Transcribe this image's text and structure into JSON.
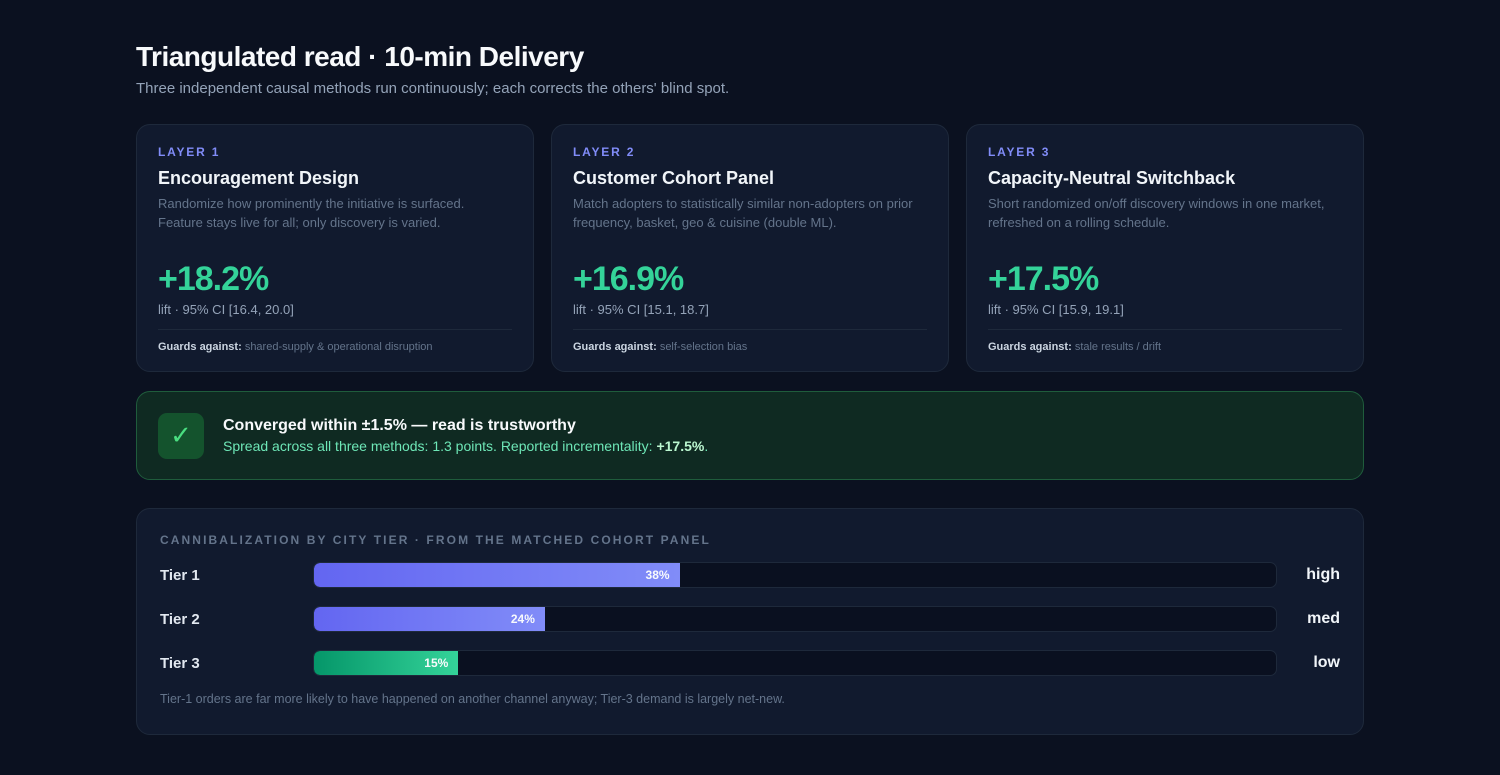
{
  "header": {
    "title": "Triangulated read · 10-min Delivery",
    "subtitle": "Three independent causal methods run continuously; each corrects the others' blind spot."
  },
  "cards": [
    {
      "layer": "LAYER 1",
      "title": "Encouragement Design",
      "description": "Randomize how prominently the initiative is surfaced. Feature stays live for all; only discovery is varied.",
      "lift": "+18.2%",
      "ci": "lift · 95% CI [16.4, 20.0]",
      "guards_label": "Guards against:",
      "guards_value": "shared-supply & operational disruption"
    },
    {
      "layer": "LAYER 2",
      "title": "Customer Cohort Panel",
      "description": "Match adopters to statistically similar non-adopters on prior frequency, basket, geo & cuisine (double ML).",
      "lift": "+16.9%",
      "ci": "lift · 95% CI [15.1, 18.7]",
      "guards_label": "Guards against:",
      "guards_value": "self-selection bias"
    },
    {
      "layer": "LAYER 3",
      "title": "Capacity-Neutral Switchback",
      "description": "Short randomized on/off discovery windows in one market, refreshed on a rolling schedule.",
      "lift": "+17.5%",
      "ci": "lift · 95% CI [15.9, 19.1]",
      "guards_label": "Guards against:",
      "guards_value": "stale results / drift"
    }
  ],
  "banner": {
    "check_icon": "✓",
    "title": "Converged within ±1.5% — read is trustworthy",
    "sub_prefix": "Spread across all three methods: 1.3 points. Reported incrementality: ",
    "sub_value": "+17.5%",
    "sub_suffix": "."
  },
  "panel": {
    "title": "CANNIBALIZATION BY CITY TIER · FROM THE MATCHED COHORT PANEL",
    "footnote": "Tier-1 orders are far more likely to have happened on another channel anyway; Tier-3 demand is largely net-new."
  },
  "chart_data": {
    "type": "bar",
    "orientation": "horizontal",
    "categories": [
      "Tier 1",
      "Tier 2",
      "Tier 3"
    ],
    "values": [
      38,
      24,
      15
    ],
    "value_labels": [
      "38%",
      "24%",
      "15%"
    ],
    "levels": [
      "high",
      "med",
      "low"
    ],
    "colors": [
      "#6366f1",
      "#6366f1",
      "#10b981"
    ],
    "xlim": [
      0,
      100
    ]
  }
}
